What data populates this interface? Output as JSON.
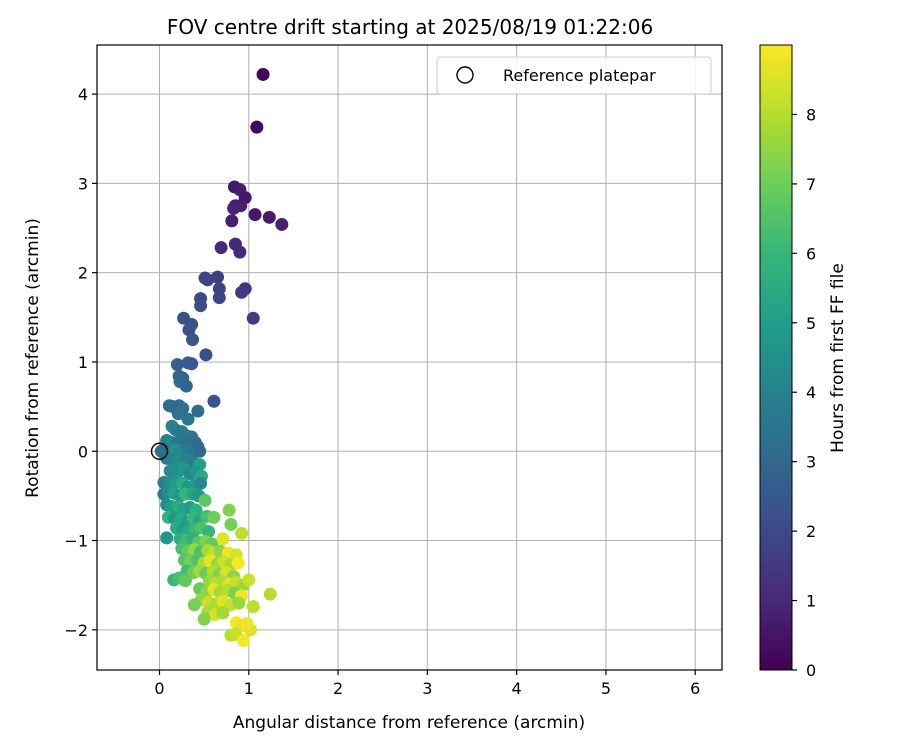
{
  "chart_data": {
    "type": "scatter",
    "title": "FOV centre drift starting at 2025/08/19 01:22:06",
    "xlabel": "Angular distance from reference (arcmin)",
    "ylabel": "Rotation from reference (arcmin)",
    "xlim": [
      -0.7,
      6.3
    ],
    "ylim": [
      -2.45,
      4.55
    ],
    "xticks": [
      0,
      1,
      2,
      3,
      4,
      5,
      6
    ],
    "yticks": [
      -2,
      -1,
      0,
      1,
      2,
      3,
      4
    ],
    "grid": true,
    "legend": {
      "placement": "top-right",
      "entries": [
        "Reference platepar"
      ]
    },
    "reference_point": {
      "x": 0,
      "y": 0,
      "label": "Reference platepar"
    },
    "colorbar": {
      "label": "Hours from first FF file",
      "colormap": "viridis",
      "range": [
        0,
        9
      ],
      "ticks": [
        0,
        1,
        2,
        3,
        4,
        5,
        6,
        7,
        8
      ]
    },
    "points": [
      {
        "x": 1.16,
        "y": 4.22,
        "t": 0.1
      },
      {
        "x": 1.09,
        "y": 3.63,
        "t": 0.2
      },
      {
        "x": 0.84,
        "y": 2.96,
        "t": 0.6
      },
      {
        "x": 0.9,
        "y": 2.93,
        "t": 0.7
      },
      {
        "x": 0.96,
        "y": 2.84,
        "t": 0.6
      },
      {
        "x": 0.85,
        "y": 2.75,
        "t": 0.7
      },
      {
        "x": 0.91,
        "y": 2.75,
        "t": 0.8
      },
      {
        "x": 0.83,
        "y": 2.72,
        "t": 0.9
      },
      {
        "x": 1.07,
        "y": 2.65,
        "t": 0.6
      },
      {
        "x": 1.23,
        "y": 2.62,
        "t": 0.7
      },
      {
        "x": 0.81,
        "y": 2.58,
        "t": 0.8
      },
      {
        "x": 1.37,
        "y": 2.54,
        "t": 0.8
      },
      {
        "x": 0.85,
        "y": 2.32,
        "t": 1.0
      },
      {
        "x": 0.69,
        "y": 2.28,
        "t": 1.1
      },
      {
        "x": 0.9,
        "y": 2.23,
        "t": 1.1
      },
      {
        "x": 0.51,
        "y": 1.94,
        "t": 1.8
      },
      {
        "x": 0.54,
        "y": 1.92,
        "t": 1.9
      },
      {
        "x": 0.65,
        "y": 1.95,
        "t": 1.7
      },
      {
        "x": 0.67,
        "y": 1.82,
        "t": 1.8
      },
      {
        "x": 0.96,
        "y": 1.82,
        "t": 1.4
      },
      {
        "x": 0.92,
        "y": 1.78,
        "t": 1.5
      },
      {
        "x": 0.46,
        "y": 1.71,
        "t": 2.0
      },
      {
        "x": 0.67,
        "y": 1.72,
        "t": 1.9
      },
      {
        "x": 0.46,
        "y": 1.63,
        "t": 2.1
      },
      {
        "x": 0.27,
        "y": 1.49,
        "t": 2.3
      },
      {
        "x": 1.05,
        "y": 1.49,
        "t": 1.6
      },
      {
        "x": 0.36,
        "y": 1.42,
        "t": 2.2
      },
      {
        "x": 0.33,
        "y": 1.36,
        "t": 2.3
      },
      {
        "x": 0.37,
        "y": 1.25,
        "t": 2.4
      },
      {
        "x": 0.52,
        "y": 1.08,
        "t": 2.2
      },
      {
        "x": 0.2,
        "y": 0.97,
        "t": 2.7
      },
      {
        "x": 0.32,
        "y": 0.99,
        "t": 2.6
      },
      {
        "x": 0.36,
        "y": 0.98,
        "t": 2.5
      },
      {
        "x": 0.22,
        "y": 0.84,
        "t": 2.8
      },
      {
        "x": 0.26,
        "y": 0.82,
        "t": 2.9
      },
      {
        "x": 0.23,
        "y": 0.78,
        "t": 3.0
      },
      {
        "x": 0.3,
        "y": 0.73,
        "t": 2.9
      },
      {
        "x": 0.61,
        "y": 0.56,
        "t": 2.4
      },
      {
        "x": 0.11,
        "y": 0.51,
        "t": 3.1
      },
      {
        "x": 0.15,
        "y": 0.5,
        "t": 3.2
      },
      {
        "x": 0.22,
        "y": 0.51,
        "t": 3.1
      },
      {
        "x": 0.26,
        "y": 0.48,
        "t": 3.3
      },
      {
        "x": 0.21,
        "y": 0.42,
        "t": 3.4
      },
      {
        "x": 0.43,
        "y": 0.45,
        "t": 3.2
      },
      {
        "x": 0.32,
        "y": 0.36,
        "t": 3.5
      },
      {
        "x": 0.14,
        "y": 0.28,
        "t": 4.0
      },
      {
        "x": 0.18,
        "y": 0.24,
        "t": 3.8
      },
      {
        "x": 0.25,
        "y": 0.22,
        "t": 3.6
      },
      {
        "x": 0.31,
        "y": 0.17,
        "t": 3.7
      },
      {
        "x": 0.36,
        "y": 0.16,
        "t": 3.5
      },
      {
        "x": 0.08,
        "y": 0.12,
        "t": 3.9
      },
      {
        "x": 0.13,
        "y": 0.1,
        "t": 4.2
      },
      {
        "x": 0.2,
        "y": 0.1,
        "t": 3.6
      },
      {
        "x": 0.28,
        "y": 0.08,
        "t": 3.3
      },
      {
        "x": 0.4,
        "y": 0.1,
        "t": 3.4
      },
      {
        "x": 0.43,
        "y": 0.05,
        "t": 3.0
      },
      {
        "x": 0.05,
        "y": 0.02,
        "t": 3.4
      },
      {
        "x": 0.1,
        "y": -0.02,
        "t": 3.7
      },
      {
        "x": 0.18,
        "y": 0.02,
        "t": 4.6
      },
      {
        "x": 0.24,
        "y": -0.01,
        "t": 4.2
      },
      {
        "x": 0.31,
        "y": 0.01,
        "t": 3.9
      },
      {
        "x": 0.37,
        "y": -0.03,
        "t": 3.6
      },
      {
        "x": 0.45,
        "y": 0.0,
        "t": 3.1
      },
      {
        "x": 0.08,
        "y": -0.08,
        "t": 3.8
      },
      {
        "x": 0.16,
        "y": -0.1,
        "t": 4.0
      },
      {
        "x": 0.22,
        "y": -0.12,
        "t": 4.4
      },
      {
        "x": 0.3,
        "y": -0.1,
        "t": 4.1
      },
      {
        "x": 0.38,
        "y": -0.13,
        "t": 3.8
      },
      {
        "x": 0.45,
        "y": -0.15,
        "t": 5.2
      },
      {
        "x": 0.12,
        "y": -0.22,
        "t": 4.3
      },
      {
        "x": 0.2,
        "y": -0.24,
        "t": 4.5
      },
      {
        "x": 0.27,
        "y": -0.2,
        "t": 4.8
      },
      {
        "x": 0.34,
        "y": -0.25,
        "t": 4.2
      },
      {
        "x": 0.41,
        "y": -0.23,
        "t": 4.6
      },
      {
        "x": 0.47,
        "y": -0.28,
        "t": 5.4
      },
      {
        "x": 0.05,
        "y": -0.35,
        "t": 3.9
      },
      {
        "x": 0.11,
        "y": -0.36,
        "t": 4.4
      },
      {
        "x": 0.19,
        "y": -0.34,
        "t": 4.9
      },
      {
        "x": 0.26,
        "y": -0.36,
        "t": 5.5
      },
      {
        "x": 0.32,
        "y": -0.4,
        "t": 4.6
      },
      {
        "x": 0.39,
        "y": -0.38,
        "t": 5.0
      },
      {
        "x": 0.46,
        "y": -0.36,
        "t": 4.3
      },
      {
        "x": 0.05,
        "y": -0.48,
        "t": 3.6
      },
      {
        "x": 0.1,
        "y": -0.46,
        "t": 4.5
      },
      {
        "x": 0.16,
        "y": -0.47,
        "t": 5.1
      },
      {
        "x": 0.23,
        "y": -0.5,
        "t": 4.7
      },
      {
        "x": 0.29,
        "y": -0.48,
        "t": 5.9
      },
      {
        "x": 0.37,
        "y": -0.48,
        "t": 5.3
      },
      {
        "x": 0.44,
        "y": -0.5,
        "t": 4.8
      },
      {
        "x": 0.51,
        "y": -0.55,
        "t": 6.7
      },
      {
        "x": 0.08,
        "y": -0.6,
        "t": 4.4
      },
      {
        "x": 0.14,
        "y": -0.62,
        "t": 5.0
      },
      {
        "x": 0.21,
        "y": -0.62,
        "t": 5.6
      },
      {
        "x": 0.27,
        "y": -0.65,
        "t": 5.2
      },
      {
        "x": 0.34,
        "y": -0.63,
        "t": 4.9
      },
      {
        "x": 0.41,
        "y": -0.66,
        "t": 5.7
      },
      {
        "x": 0.1,
        "y": -0.74,
        "t": 5.8
      },
      {
        "x": 0.17,
        "y": -0.75,
        "t": 4.7
      },
      {
        "x": 0.24,
        "y": -0.76,
        "t": 5.4
      },
      {
        "x": 0.31,
        "y": -0.79,
        "t": 5.1
      },
      {
        "x": 0.38,
        "y": -0.75,
        "t": 6.0
      },
      {
        "x": 0.45,
        "y": -0.77,
        "t": 5.3
      },
      {
        "x": 0.53,
        "y": -0.73,
        "t": 6.4
      },
      {
        "x": 0.61,
        "y": -0.74,
        "t": 7.0
      },
      {
        "x": 0.78,
        "y": -0.66,
        "t": 7.3
      },
      {
        "x": 0.8,
        "y": -0.82,
        "t": 7.1
      },
      {
        "x": 0.19,
        "y": -0.86,
        "t": 5.6
      },
      {
        "x": 0.26,
        "y": -0.88,
        "t": 5.0
      },
      {
        "x": 0.33,
        "y": -0.9,
        "t": 5.5
      },
      {
        "x": 0.4,
        "y": -0.88,
        "t": 6.1
      },
      {
        "x": 0.47,
        "y": -0.86,
        "t": 6.5
      },
      {
        "x": 0.55,
        "y": -0.9,
        "t": 5.9
      },
      {
        "x": 0.92,
        "y": -0.92,
        "t": 8.1
      },
      {
        "x": 0.08,
        "y": -0.97,
        "t": 4.7
      },
      {
        "x": 0.23,
        "y": -0.98,
        "t": 5.7
      },
      {
        "x": 0.3,
        "y": -1.0,
        "t": 6.2
      },
      {
        "x": 0.37,
        "y": -0.98,
        "t": 5.8
      },
      {
        "x": 0.44,
        "y": -1.02,
        "t": 6.6
      },
      {
        "x": 0.52,
        "y": -1.01,
        "t": 7.2
      },
      {
        "x": 0.59,
        "y": -1.04,
        "t": 6.8
      },
      {
        "x": 0.71,
        "y": -0.98,
        "t": 8.6
      },
      {
        "x": 0.25,
        "y": -1.09,
        "t": 6.3
      },
      {
        "x": 0.32,
        "y": -1.12,
        "t": 6.9
      },
      {
        "x": 0.39,
        "y": -1.1,
        "t": 7.5
      },
      {
        "x": 0.46,
        "y": -1.13,
        "t": 6.4
      },
      {
        "x": 0.54,
        "y": -1.11,
        "t": 7.8
      },
      {
        "x": 0.61,
        "y": -1.14,
        "t": 8.2
      },
      {
        "x": 0.68,
        "y": -1.12,
        "t": 7.4
      },
      {
        "x": 0.77,
        "y": -1.14,
        "t": 8.8
      },
      {
        "x": 0.86,
        "y": -1.16,
        "t": 8.4
      },
      {
        "x": 0.28,
        "y": -1.22,
        "t": 6.6
      },
      {
        "x": 0.35,
        "y": -1.24,
        "t": 7.1
      },
      {
        "x": 0.42,
        "y": -1.22,
        "t": 6.5
      },
      {
        "x": 0.5,
        "y": -1.25,
        "t": 7.9
      },
      {
        "x": 0.57,
        "y": -1.23,
        "t": 8.7
      },
      {
        "x": 0.65,
        "y": -1.26,
        "t": 7.6
      },
      {
        "x": 0.72,
        "y": -1.24,
        "t": 8.3
      },
      {
        "x": 0.8,
        "y": -1.27,
        "t": 7.8
      },
      {
        "x": 0.88,
        "y": -1.25,
        "t": 8.9
      },
      {
        "x": 0.31,
        "y": -1.34,
        "t": 6.2
      },
      {
        "x": 0.38,
        "y": -1.36,
        "t": 7.0
      },
      {
        "x": 0.45,
        "y": -1.34,
        "t": 7.7
      },
      {
        "x": 0.52,
        "y": -1.37,
        "t": 6.9
      },
      {
        "x": 0.6,
        "y": -1.35,
        "t": 8.0
      },
      {
        "x": 0.67,
        "y": -1.38,
        "t": 7.3
      },
      {
        "x": 0.75,
        "y": -1.36,
        "t": 8.5
      },
      {
        "x": 0.83,
        "y": -1.4,
        "t": 7.5
      },
      {
        "x": 0.16,
        "y": -1.44,
        "t": 6.0
      },
      {
        "x": 0.22,
        "y": -1.42,
        "t": 6.4
      },
      {
        "x": 0.29,
        "y": -1.45,
        "t": 6.8
      },
      {
        "x": 0.56,
        "y": -1.46,
        "t": 7.6
      },
      {
        "x": 0.63,
        "y": -1.48,
        "t": 8.1
      },
      {
        "x": 0.7,
        "y": -1.46,
        "t": 7.9
      },
      {
        "x": 0.78,
        "y": -1.49,
        "t": 8.6
      },
      {
        "x": 0.86,
        "y": -1.47,
        "t": 8.2
      },
      {
        "x": 0.94,
        "y": -1.5,
        "t": 7.7
      },
      {
        "x": 1.0,
        "y": -1.44,
        "t": 8.3
      },
      {
        "x": 0.45,
        "y": -1.54,
        "t": 6.9
      },
      {
        "x": 0.53,
        "y": -1.57,
        "t": 7.4
      },
      {
        "x": 0.61,
        "y": -1.55,
        "t": 8.7
      },
      {
        "x": 0.68,
        "y": -1.58,
        "t": 7.8
      },
      {
        "x": 0.76,
        "y": -1.56,
        "t": 8.0
      },
      {
        "x": 0.84,
        "y": -1.59,
        "t": 7.2
      },
      {
        "x": 0.92,
        "y": -1.62,
        "t": 8.8
      },
      {
        "x": 1.24,
        "y": -1.6,
        "t": 8.0
      },
      {
        "x": 0.47,
        "y": -1.66,
        "t": 7.5
      },
      {
        "x": 0.55,
        "y": -1.69,
        "t": 8.3
      },
      {
        "x": 0.63,
        "y": -1.71,
        "t": 7.9
      },
      {
        "x": 0.71,
        "y": -1.68,
        "t": 8.6
      },
      {
        "x": 0.39,
        "y": -1.72,
        "t": 7.1
      },
      {
        "x": 0.8,
        "y": -1.72,
        "t": 8.2
      },
      {
        "x": 0.89,
        "y": -1.7,
        "t": 7.6
      },
      {
        "x": 1.05,
        "y": -1.74,
        "t": 8.1
      },
      {
        "x": 0.54,
        "y": -1.8,
        "t": 7.8
      },
      {
        "x": 0.62,
        "y": -1.83,
        "t": 8.4
      },
      {
        "x": 0.71,
        "y": -1.81,
        "t": 7.7
      },
      {
        "x": 0.5,
        "y": -1.88,
        "t": 7.3
      },
      {
        "x": 0.86,
        "y": -1.92,
        "t": 8.9
      },
      {
        "x": 0.93,
        "y": -1.95,
        "t": 8.7
      },
      {
        "x": 1.02,
        "y": -2.0,
        "t": 8.5
      },
      {
        "x": 0.8,
        "y": -2.06,
        "t": 8.0
      },
      {
        "x": 0.85,
        "y": -2.05,
        "t": 8.2
      },
      {
        "x": 0.94,
        "y": -2.12,
        "t": 8.9
      },
      {
        "x": 0.98,
        "y": -1.93,
        "t": 8.8
      },
      {
        "x": 0.02,
        "y": 0.0,
        "t": 3.2
      }
    ]
  }
}
